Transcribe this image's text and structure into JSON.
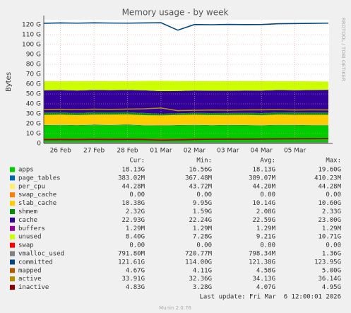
{
  "chart_data": {
    "type": "area",
    "title": "Memory usage - by week",
    "y_label": "Bytes",
    "watermark": "RRDTOOL / TOBI OETIKER",
    "categories": [
      null,
      "26 Feb",
      null,
      "27 Feb",
      null,
      "28 Feb",
      null,
      "01 Mar",
      null,
      "02 Mar",
      null,
      "03 Mar",
      null,
      "04 Mar",
      null,
      "05 Mar",
      null,
      null
    ],
    "ylim": [
      0,
      125
    ],
    "yticks": [
      0,
      {
        "value": 10,
        "label": "10 G"
      },
      {
        "value": 20,
        "label": "20 G"
      },
      {
        "value": 30,
        "label": "30 G"
      },
      {
        "value": 40,
        "label": "40 G"
      },
      {
        "value": 50,
        "label": "50 G"
      },
      {
        "value": 60,
        "label": "60 G"
      },
      {
        "value": 70,
        "label": "70 G"
      },
      {
        "value": 80,
        "label": "80 G"
      },
      {
        "value": 90,
        "label": "90 G"
      },
      {
        "value": 100,
        "label": "100 G"
      },
      {
        "value": 110,
        "label": "110 G"
      },
      {
        "value": 120,
        "label": "120 G"
      }
    ],
    "grid": true,
    "columns": [
      "Cur:",
      "Min:",
      "Avg:",
      "Max:"
    ],
    "series": [
      {
        "name": "apps",
        "color": "#00cc00",
        "style": "area",
        "values": [
          18.2,
          18.4,
          18.1,
          18.5,
          18.3,
          18.6,
          18.0,
          17.9,
          18.2,
          18.4,
          18.1,
          18.3,
          18.2,
          18.0,
          18.4,
          18.3,
          18.1,
          18.13
        ],
        "stats": [
          "18.13G",
          "16.56G",
          "18.13G",
          "19.60G"
        ]
      },
      {
        "name": "page_tables",
        "color": "#0066b3",
        "style": "area",
        "values": [
          0.38,
          0.38,
          0.38,
          0.39,
          0.38,
          0.38,
          0.39,
          0.38,
          0.38,
          0.38,
          0.39,
          0.38,
          0.38,
          0.38,
          0.39,
          0.38,
          0.38,
          0.38
        ],
        "stats": [
          "383.02M",
          "367.48M",
          "389.07M",
          "410.23M"
        ]
      },
      {
        "name": "per_cpu",
        "color": "#ffee66",
        "style": "area",
        "values": [
          0.044,
          0.044,
          0.044,
          0.044,
          0.044,
          0.044,
          0.044,
          0.044,
          0.044,
          0.044,
          0.044,
          0.044,
          0.044,
          0.044,
          0.044,
          0.044,
          0.044,
          0.044
        ],
        "stats": [
          "44.28M",
          "43.72M",
          "44.20M",
          "44.28M"
        ]
      },
      {
        "name": "swap_cache",
        "color": "#ff8000",
        "style": "area",
        "values": [
          0,
          0,
          0,
          0,
          0,
          0,
          0,
          0,
          0,
          0,
          0,
          0,
          0,
          0,
          0,
          0,
          0,
          0
        ],
        "stats": [
          "0.00",
          "0.00",
          "0.00",
          "0.00"
        ]
      },
      {
        "name": "slab_cache",
        "color": "#ffcc00",
        "style": "area",
        "values": [
          10.2,
          10.3,
          10.1,
          10.2,
          10.4,
          10.3,
          10.1,
          10.0,
          10.1,
          10.2,
          10.1,
          10.0,
          10.2,
          10.1,
          10.3,
          10.2,
          10.4,
          10.38
        ],
        "stats": [
          "10.38G",
          "9.95G",
          "10.14G",
          "10.60G"
        ]
      },
      {
        "name": "shmem",
        "color": "#008f00",
        "style": "area",
        "values": [
          2.3,
          2.3,
          2.2,
          2.3,
          2.3,
          2.2,
          2.3,
          1.6,
          1.7,
          2.0,
          2.1,
          2.1,
          2.2,
          2.2,
          2.3,
          2.3,
          2.3,
          2.32
        ],
        "stats": [
          "2.32G",
          "1.59G",
          "2.08G",
          "2.33G"
        ]
      },
      {
        "name": "cache",
        "color": "#330099",
        "style": "area",
        "values": [
          22.6,
          22.5,
          22.7,
          22.6,
          22.4,
          22.5,
          22.8,
          22.9,
          22.6,
          22.5,
          22.6,
          22.4,
          22.5,
          22.7,
          22.6,
          22.5,
          22.8,
          22.93
        ],
        "stats": [
          "22.93G",
          "22.24G",
          "22.59G",
          "23.00G"
        ]
      },
      {
        "name": "buffers",
        "color": "#990099",
        "style": "area",
        "values": [
          0.0013,
          0.0013,
          0.0013,
          0.0013,
          0.0013,
          0.0013,
          0.0013,
          0.0013,
          0.0013,
          0.0013,
          0.0013,
          0.0013,
          0.0013,
          0.0013,
          0.0013,
          0.0013,
          0.0013,
          0.0013
        ],
        "stats": [
          "1.29M",
          "1.29M",
          "1.29M",
          "1.29M"
        ]
      },
      {
        "name": "unused",
        "color": "#ccff00",
        "style": "area",
        "values": [
          9.2,
          9.0,
          9.4,
          9.0,
          9.1,
          8.9,
          9.5,
          10.5,
          10.0,
          9.5,
          9.6,
          9.8,
          9.5,
          9.6,
          8.9,
          9.2,
          8.7,
          8.4
        ],
        "stats": [
          "8.40G",
          "7.28G",
          "9.21G",
          "10.71G"
        ]
      },
      {
        "name": "swap",
        "color": "#ff0000",
        "style": "area",
        "values": [
          0,
          0,
          0,
          0,
          0,
          0,
          0,
          0,
          0,
          0,
          0,
          0,
          0,
          0,
          0,
          0,
          0,
          0
        ],
        "stats": [
          "0.00",
          "0.00",
          "0.00",
          "0.00"
        ]
      },
      {
        "name": "vmalloc_used",
        "color": "#808080",
        "style": "line",
        "values": [
          0.79,
          0.79,
          0.79,
          0.8,
          0.79,
          0.79,
          0.8,
          0.78,
          0.79,
          0.79,
          0.8,
          0.79,
          0.79,
          0.8,
          0.79,
          0.79,
          0.8,
          0.79
        ],
        "stats": [
          "791.80M",
          "720.77M",
          "798.34M",
          "1.36G"
        ]
      },
      {
        "name": "committed",
        "color": "#00487d",
        "style": "line",
        "values": [
          121.5,
          121.8,
          121.6,
          121.9,
          121.7,
          121.6,
          121.8,
          122.0,
          114.5,
          120.2,
          120.0,
          120.3,
          120.1,
          120.2,
          121.0,
          121.2,
          121.4,
          121.6
        ],
        "stats": [
          "121.61G",
          "114.00G",
          "121.38G",
          "123.95G"
        ]
      },
      {
        "name": "mapped",
        "color": "#b35a00",
        "style": "line",
        "values": [
          4.5,
          4.6,
          4.5,
          4.6,
          4.7,
          4.5,
          4.6,
          4.3,
          4.4,
          4.6,
          4.5,
          4.6,
          4.6,
          4.5,
          4.7,
          4.6,
          4.6,
          4.67
        ],
        "stats": [
          "4.67G",
          "4.11G",
          "4.58G",
          "5.00G"
        ]
      },
      {
        "name": "active",
        "color": "#b38f00",
        "style": "line",
        "values": [
          34.3,
          34.5,
          34.2,
          34.6,
          34.4,
          34.7,
          35.0,
          35.8,
          33.2,
          33.5,
          33.8,
          33.6,
          33.9,
          34.0,
          34.1,
          33.8,
          34.0,
          33.91
        ],
        "stats": [
          "33.91G",
          "32.36G",
          "34.13G",
          "36.14G"
        ]
      },
      {
        "name": "inactive",
        "color": "#8b0000",
        "style": "line",
        "values": [
          3.8,
          3.9,
          3.8,
          4.0,
          3.9,
          4.0,
          3.9,
          3.3,
          3.6,
          4.0,
          4.2,
          4.3,
          4.3,
          4.4,
          4.6,
          4.7,
          4.8,
          4.83
        ],
        "stats": [
          "4.83G",
          "3.28G",
          "4.07G",
          "4.95G"
        ]
      }
    ],
    "footer": "Last update: Fri Mar  6 12:00:01 2026",
    "version": "Munin 2.0.76"
  }
}
